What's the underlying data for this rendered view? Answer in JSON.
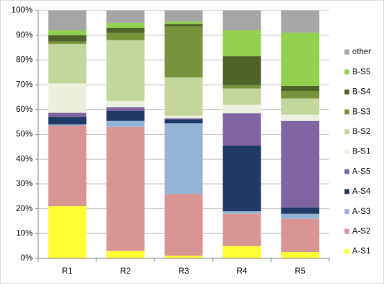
{
  "chart_data": {
    "type": "stacked_bar",
    "categories": [
      "R1",
      "R2",
      "R3",
      "R4",
      "R5"
    ],
    "series": [
      {
        "name": "A-S1",
        "color": "#ffff33",
        "values": [
          21,
          3,
          1,
          5,
          2.5
        ]
      },
      {
        "name": "A-S2",
        "color": "#d99594",
        "values": [
          32.5,
          50,
          25,
          13,
          13.5
        ]
      },
      {
        "name": "A-S3",
        "color": "#95b3d7",
        "values": [
          0.5,
          2.5,
          28.5,
          1,
          2
        ]
      },
      {
        "name": "A-S4",
        "color": "#1f3864",
        "values": [
          3,
          4,
          1.5,
          26.5,
          2.5
        ]
      },
      {
        "name": "A-S5",
        "color": "#8064a2",
        "values": [
          1.7,
          1.5,
          0.5,
          13,
          35
        ]
      },
      {
        "name": "B-S1",
        "color": "#ebf1de",
        "values": [
          11.8,
          2.5,
          1,
          3.5,
          2.5
        ]
      },
      {
        "name": "B-S2",
        "color": "#c3d69b",
        "values": [
          16,
          24.5,
          15.5,
          6.5,
          6.5
        ]
      },
      {
        "name": "B-S3",
        "color": "#77933c",
        "values": [
          1,
          3,
          20.5,
          1.5,
          3
        ]
      },
      {
        "name": "B-S4",
        "color": "#4f6228",
        "values": [
          2.5,
          2,
          1,
          11.5,
          2
        ]
      },
      {
        "name": "B-S5",
        "color": "#92d050",
        "values": [
          2,
          2,
          1,
          10.5,
          21.5
        ]
      },
      {
        "name": "other",
        "color": "#a6a6a6",
        "values": [
          8,
          5,
          4.5,
          8,
          9
        ]
      }
    ],
    "ylim": [
      0,
      100
    ],
    "yticks": [
      {
        "value": 0,
        "label": "0%"
      },
      {
        "value": 10,
        "label": "10%"
      },
      {
        "value": 20,
        "label": "20%"
      },
      {
        "value": 30,
        "label": "30%"
      },
      {
        "value": 40,
        "label": "40%"
      },
      {
        "value": 50,
        "label": "50%"
      },
      {
        "value": 60,
        "label": "60%"
      },
      {
        "value": 70,
        "label": "70%"
      },
      {
        "value": 80,
        "label": "80%"
      },
      {
        "value": 90,
        "label": "90%"
      },
      {
        "value": 100,
        "label": "100%"
      }
    ],
    "grid": true,
    "legend": "right"
  }
}
